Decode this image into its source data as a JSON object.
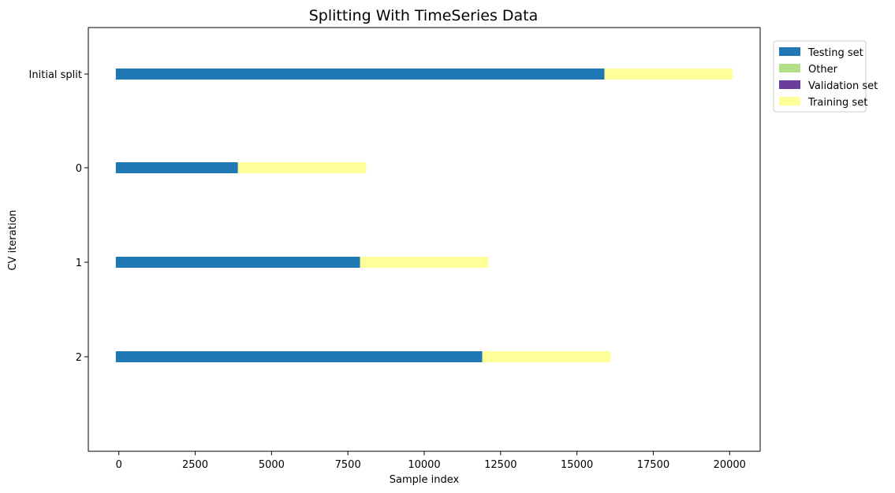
{
  "chart_data": {
    "type": "bar",
    "orientation": "horizontal",
    "stacked": true,
    "title": "Splitting With TimeSeries Data",
    "xlabel": "Sample index",
    "ylabel": "CV iteration",
    "xlim": [
      -1000,
      21000
    ],
    "xticks": [
      0,
      2500,
      5000,
      7500,
      10000,
      12500,
      15000,
      17500,
      20000
    ],
    "xtick_labels": [
      "0",
      "2500",
      "5000",
      "7500",
      "10000",
      "12500",
      "15000",
      "17500",
      "20000"
    ],
    "categories": [
      "Initial split",
      "0",
      "1",
      "2"
    ],
    "grid": false,
    "legend_position": "outside-top-right",
    "legend": [
      {
        "label": "Testing set",
        "color": "#1f77b4"
      },
      {
        "label": "Other",
        "color": "#b2df8a"
      },
      {
        "label": "Validation set",
        "color": "#6a3d9a"
      },
      {
        "label": "Training set",
        "color": "#ffff99"
      }
    ],
    "rows": [
      {
        "label": "Initial split",
        "segments": [
          {
            "series": "Testing set",
            "start": -100,
            "end": 15900
          },
          {
            "series": "Training set",
            "start": 15900,
            "end": 20100
          }
        ]
      },
      {
        "label": "0",
        "segments": [
          {
            "series": "Testing set",
            "start": -100,
            "end": 3900
          },
          {
            "series": "Training set",
            "start": 3900,
            "end": 8100
          }
        ]
      },
      {
        "label": "1",
        "segments": [
          {
            "series": "Testing set",
            "start": -100,
            "end": 7900
          },
          {
            "series": "Training set",
            "start": 7900,
            "end": 12100
          }
        ]
      },
      {
        "label": "2",
        "segments": [
          {
            "series": "Testing set",
            "start": -100,
            "end": 11900
          },
          {
            "series": "Training set",
            "start": 11900,
            "end": 16100
          }
        ]
      }
    ]
  }
}
